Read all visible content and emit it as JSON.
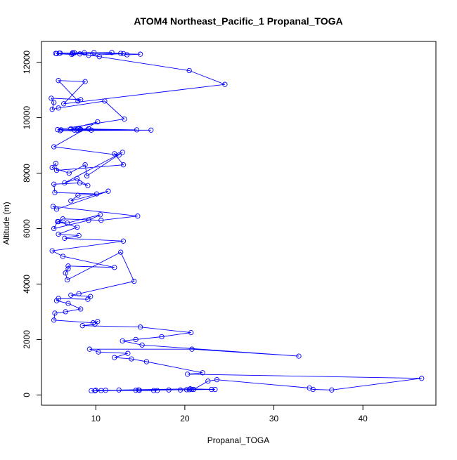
{
  "chart_data": {
    "type": "line",
    "title": "ATOM4 Northeast_Pacific_1 Propanal_TOGA",
    "xlabel": "Propanal_TOGA",
    "ylabel": "Altitude (m)",
    "xlim": [
      3.9,
      48.2
    ],
    "ylim": [
      -370,
      12750
    ],
    "xticks": [
      10,
      20,
      30,
      40
    ],
    "yticks": [
      0,
      2000,
      4000,
      6000,
      8000,
      10000,
      12000
    ],
    "grid": false,
    "legend": "none",
    "marker": "open-circle",
    "series_color": "#0000ff",
    "x": [
      5.5,
      6.0,
      8.7,
      5.9,
      11.8,
      7.4,
      12.8,
      7.4,
      9.8,
      7.3,
      5.6,
      8.2,
      9.2,
      13.1,
      13.5,
      15.0,
      7.6,
      10.4,
      20.5,
      24.5,
      6.4,
      8.8,
      5.8,
      8.0,
      8.3,
      5.0,
      5.3,
      5.1,
      5.8,
      11.0,
      13.2,
      5.7,
      14.6,
      8.0,
      8.2,
      7.9,
      6.0,
      16.2,
      6.1,
      9.2,
      7.6,
      8.3,
      9.5,
      7.2,
      10.2,
      5.3,
      12.6,
      12.1,
      13.1,
      5.6,
      5.5,
      5.1,
      7.0,
      8.8,
      9.0,
      13.0,
      6.5,
      7.9,
      9.1,
      8.2,
      5.3,
      5.4,
      10.1,
      8.0,
      7.2,
      11.4,
      5.6,
      5.2,
      14.7,
      10.6,
      6.3,
      5.8,
      6.8,
      10.5,
      9.2,
      5.3,
      5.7,
      7.9,
      5.8,
      8.1,
      6.5,
      13.1,
      5.1,
      6.3,
      12.1,
      6.9,
      6.9,
      6.6,
      6.8,
      12.8,
      14.3,
      8.1,
      7.2,
      9.4,
      9.1,
      5.8,
      5.6,
      6.9,
      8.3,
      6.6,
      5.4,
      5.3,
      9.7,
      10.2,
      9.9,
      8.5,
      15.0,
      20.7,
      17.4,
      14.5,
      13.0,
      15.2,
      32.8,
      20.8,
      9.3,
      10.3,
      13.6,
      12.1,
      14.0,
      15.7,
      22.0,
      20.3,
      46.6,
      36.5,
      34.4,
      34.0,
      23.6,
      22.6,
      21.0,
      23.4,
      20.6,
      12.6,
      16.9,
      10.0,
      20.2,
      19.5,
      20.8,
      20.5,
      23.0,
      18.2,
      14.9,
      16.5,
      14.8,
      11.1,
      9.5,
      14.5,
      10.6,
      9.9
    ],
    "y": [
      12320,
      12330,
      12340,
      12330,
      12350,
      12320,
      12320,
      12340,
      12350,
      12280,
      12310,
      12300,
      12250,
      12310,
      12270,
      12290,
      12340,
      12200,
      11700,
      11200,
      10500,
      11300,
      11340,
      10600,
      10650,
      10700,
      10550,
      10300,
      10350,
      10600,
      9950,
      9570,
      9560,
      9600,
      9560,
      9550,
      9530,
      9550,
      9560,
      9600,
      9550,
      9580,
      9550,
      9600,
      9850,
      8950,
      8650,
      8700,
      8300,
      8100,
      8350,
      8200,
      8000,
      8300,
      7900,
      8750,
      7650,
      7800,
      7550,
      7650,
      7600,
      7300,
      7250,
      7200,
      7000,
      7350,
      6700,
      6800,
      6450,
      6300,
      6350,
      6250,
      6200,
      6500,
      6300,
      6000,
      6250,
      6050,
      5800,
      5750,
      5650,
      5550,
      5200,
      5000,
      4600,
      4650,
      4550,
      4400,
      4150,
      5150,
      4100,
      3650,
      3600,
      3550,
      3450,
      3480,
      3400,
      3300,
      3100,
      3000,
      2950,
      2700,
      2600,
      2650,
      2550,
      2500,
      2450,
      2250,
      2100,
      2000,
      1950,
      1800,
      1400,
      1650,
      1650,
      1550,
      1500,
      1350,
      1300,
      1200,
      800,
      750,
      600,
      180,
      200,
      250,
      550,
      500,
      200,
      200,
      220,
      180,
      160,
      170,
      190,
      180,
      200,
      190,
      200,
      180,
      170,
      160,
      180,
      170,
      150,
      170,
      160,
      150
    ]
  }
}
